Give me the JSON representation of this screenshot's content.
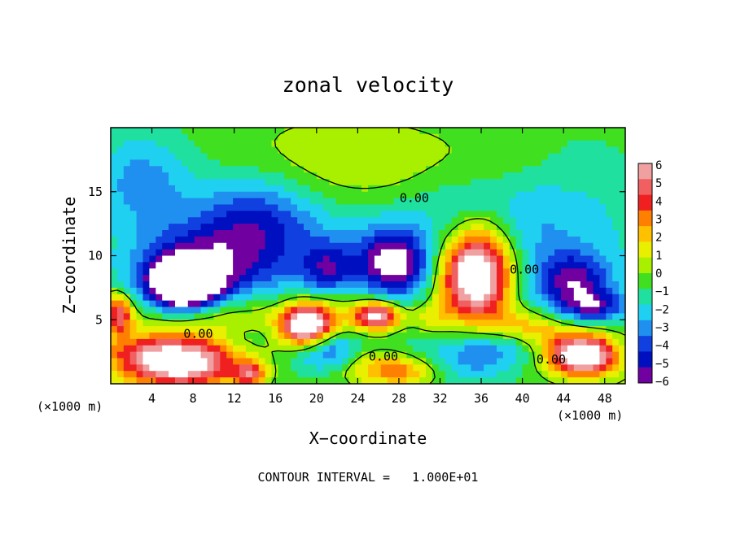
{
  "chart_data": {
    "type": "heatmap",
    "title": "zonal velocity",
    "xlabel": "X−coordinate",
    "ylabel": "Z−coordinate",
    "x_unit_left": "(×1000 m)",
    "x_unit_right": "(×1000 m)",
    "footer": "CONTOUR INTERVAL =   1.000E+01",
    "xlim": [
      0,
      50
    ],
    "ylim": [
      0,
      20
    ],
    "x_ticks": [
      4,
      8,
      12,
      16,
      20,
      24,
      28,
      32,
      36,
      40,
      44,
      48
    ],
    "x_tick_labels": [
      "4",
      "8",
      "12",
      "16",
      "20",
      "24",
      "28",
      "32",
      "36",
      "40",
      "44",
      "48"
    ],
    "y_ticks": [
      5,
      10,
      15
    ],
    "y_tick_labels": [
      "5",
      "10",
      "15"
    ],
    "colorbar": {
      "min": -6,
      "max": 6,
      "labels": [
        "6",
        "5",
        "4",
        "3",
        "2",
        "1",
        "0",
        "−1",
        "−2",
        "−3",
        "−4",
        "−5",
        "−6"
      ],
      "bands": [
        "#f0a0a0",
        "#f06060",
        "#f02020",
        "#ff8000",
        "#ffc000",
        "#e8f000",
        "#a8f000",
        "#40e020",
        "#20e0a0",
        "#20d0f0",
        "#2090f0",
        "#1040e0",
        "#0010c0",
        "#7000a0"
      ]
    },
    "contour_labels": [
      {
        "text": "0.00",
        "x": 29.5,
        "y": 14.2
      },
      {
        "text": "0.00",
        "x": 8.5,
        "y": 3.6
      },
      {
        "text": "0.00",
        "x": 26.5,
        "y": 1.8
      },
      {
        "text": "0.00",
        "x": 40.2,
        "y": 8.6
      },
      {
        "text": "0.00",
        "x": 42.8,
        "y": 1.6
      }
    ],
    "features": [
      {
        "v": -2.0,
        "x": 25,
        "y": 10,
        "rx": 26,
        "ry": 10
      },
      {
        "v": 1.5,
        "x": 24,
        "y": 16.5,
        "rx": 14,
        "ry": 4
      },
      {
        "v": 1.0,
        "x": 38,
        "y": 17,
        "rx": 7,
        "ry": 3
      },
      {
        "v": 0.5,
        "x": 20,
        "y": 17,
        "rx": 12,
        "ry": 3
      },
      {
        "v": -1.2,
        "x": 44,
        "y": 13,
        "rx": 9,
        "ry": 8
      },
      {
        "v": -2.5,
        "x": 3,
        "y": 16,
        "rx": 5,
        "ry": 4
      },
      {
        "v": -3.5,
        "x": 14,
        "y": 12.5,
        "rx": 6,
        "ry": 4
      },
      {
        "v": -4.0,
        "x": 8,
        "y": 9,
        "rx": 6,
        "ry": 3
      },
      {
        "v": -8.0,
        "x": 7,
        "y": 7.5,
        "rx": 3.3,
        "ry": 1.9
      },
      {
        "v": -5.0,
        "x": 27.5,
        "y": 9.5,
        "rx": 3.5,
        "ry": 2.6
      },
      {
        "v": -3.0,
        "x": 21,
        "y": 9,
        "rx": 2.5,
        "ry": 2
      },
      {
        "v": 8.5,
        "x": 35,
        "y": 8.5,
        "rx": 3.4,
        "ry": 3.6
      },
      {
        "v": 2.5,
        "x": 37,
        "y": 9,
        "rx": 3,
        "ry": 5
      },
      {
        "v": -4.0,
        "x": 45,
        "y": 8,
        "rx": 3.5,
        "ry": 2.2
      },
      {
        "v": 3.0,
        "x": 10,
        "y": 5,
        "rx": 8,
        "ry": 2
      },
      {
        "v": 8.0,
        "x": 19,
        "y": 4.5,
        "rx": 2.3,
        "ry": 1.6
      },
      {
        "v": 7.0,
        "x": 26,
        "y": 5.3,
        "rx": 2.1,
        "ry": 1.1
      },
      {
        "v": 2.5,
        "x": 22,
        "y": 5.5,
        "rx": 5,
        "ry": 1.8
      },
      {
        "v": 3.0,
        "x": 40.5,
        "y": 4.5,
        "rx": 3.5,
        "ry": 1.4
      },
      {
        "v": 5.0,
        "x": 0.8,
        "y": 5.5,
        "rx": 1.3,
        "ry": 1.6
      },
      {
        "v": 6.5,
        "x": 7,
        "y": 1.2,
        "rx": 5.5,
        "ry": 1.6
      },
      {
        "v": 3.0,
        "x": 7,
        "y": 2.6,
        "rx": 7,
        "ry": 1.3
      },
      {
        "v": 1.5,
        "x": 3,
        "y": 2.5,
        "rx": 4,
        "ry": 1.8
      },
      {
        "v": 3.0,
        "x": 26,
        "y": 1.3,
        "rx": 4,
        "ry": 1.4
      },
      {
        "v": -3.0,
        "x": 21,
        "y": 2.5,
        "rx": 3,
        "ry": 1.5
      },
      {
        "v": -3.5,
        "x": 37,
        "y": 2.2,
        "rx": 5,
        "ry": 2
      },
      {
        "v": 1.5,
        "x": 40,
        "y": 1.5,
        "rx": 4,
        "ry": 1.5
      },
      {
        "v": 8.0,
        "x": 46,
        "y": 2.0,
        "rx": 3,
        "ry": 1.4
      },
      {
        "v": 3.0,
        "x": 45,
        "y": 3.2,
        "rx": 4,
        "ry": 1.5
      },
      {
        "v": -3.5,
        "x": 47,
        "y": 6,
        "rx": 3,
        "ry": 1.2
      },
      {
        "v": 2.0,
        "x": 29,
        "y": 0.8,
        "rx": 3,
        "ry": 1
      },
      {
        "v": -1.5,
        "x": 13,
        "y": 3.5,
        "rx": 3,
        "ry": 1.5
      },
      {
        "v": 2.0,
        "x": 31,
        "y": 5.2,
        "rx": 2.5,
        "ry": 1.5
      },
      {
        "v": 4.5,
        "x": 13.5,
        "y": 0.8,
        "rx": 1.5,
        "ry": 1
      },
      {
        "v": -1.5,
        "x": 36,
        "y": 14,
        "rx": 6,
        "ry": 4
      }
    ]
  }
}
